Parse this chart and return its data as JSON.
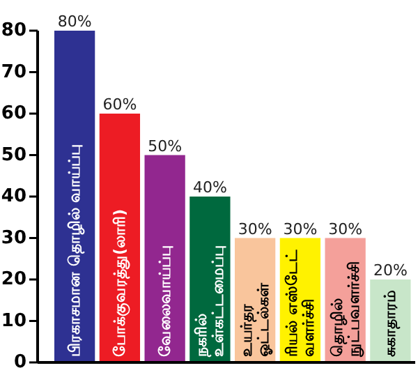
{
  "chart_data": {
    "type": "bar",
    "categories": [
      "பிரகாசமான தொழில் வாய்ப்பு",
      "போக்குவரத்து(லாரி)",
      "வேலைவாய்ப்பு",
      "நகரில் உள்கட்டமைப்பு",
      "உயர்தர ஓட்டல்கள்",
      "ரியல் எஸ்டேட் வளர்ச்சி",
      "தொழில் நுட்பவளர்ச்சி",
      "சுகாதாரம்"
    ],
    "values": [
      80,
      60,
      50,
      40,
      30,
      30,
      30,
      20
    ],
    "colors": [
      "#2e3192",
      "#ed1c24",
      "#92278f",
      "#00693e",
      "#f9c59c",
      "#fff200",
      "#f4a09a",
      "#c8e6c9"
    ],
    "value_labels": [
      "80%",
      "60%",
      "50%",
      "40%",
      "30%",
      "30%",
      "30%",
      "20%"
    ],
    "ylim": [
      0,
      80
    ],
    "yticks": [
      0,
      10,
      20,
      30,
      40,
      50,
      60,
      70,
      80
    ]
  }
}
